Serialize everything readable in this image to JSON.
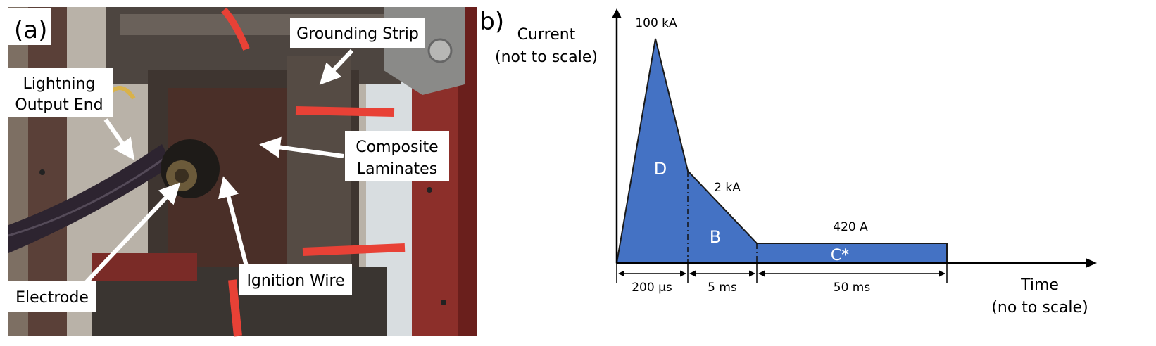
{
  "panel_a": {
    "tag": "(a)",
    "labels": {
      "grounding_strip": "Grounding Strip",
      "lightning_line1": "Lightning",
      "lightning_line2": "Output End",
      "composite_line1": "Composite",
      "composite_line2": "Laminates",
      "ignition_wire": "Ignition Wire",
      "electrode": "Electrode"
    }
  },
  "panel_b": {
    "tag": "(b)",
    "y_axis_line1": "Current",
    "y_axis_line2": "(not to scale)",
    "x_axis_line1": "Time",
    "x_axis_line2": "(no to scale)",
    "peak_label": "100 kA",
    "mid_label": "2 kA",
    "tail_label": "420 A",
    "region_d": "D",
    "region_b": "B",
    "region_c": "C*",
    "dur_1": "200 µs",
    "dur_2": "5 ms",
    "dur_3": "50 ms",
    "fill_color": "#4472c4"
  }
}
